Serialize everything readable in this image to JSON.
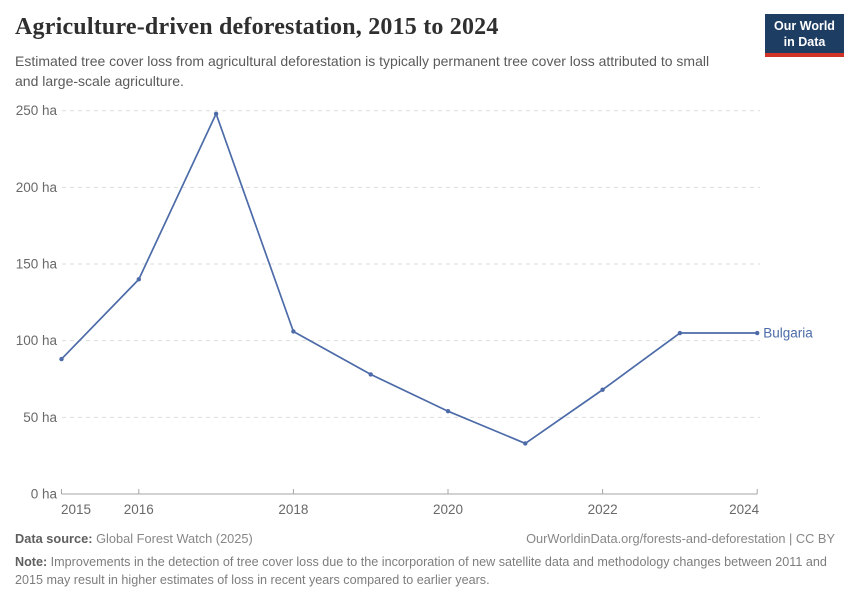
{
  "header": {
    "title": "Agriculture-driven deforestation, 2015 to 2024",
    "subtitle": "Estimated tree cover loss from agricultural deforestation is typically permanent tree cover loss attributed to small and large-scale agriculture.",
    "logo_line1": "Our World",
    "logo_line2": "in Data"
  },
  "chart_data": {
    "type": "line",
    "title": "Agriculture-driven deforestation, 2015 to 2024",
    "unit": "ha",
    "x": [
      2015,
      2016,
      2017,
      2018,
      2019,
      2020,
      2021,
      2022,
      2023,
      2024
    ],
    "series": [
      {
        "name": "Bulgaria",
        "values": [
          88,
          140,
          248,
          106,
          78,
          54,
          33,
          68,
          105,
          105
        ]
      }
    ],
    "xlim": [
      2015,
      2024
    ],
    "ylim": [
      0,
      250
    ],
    "yticks": [
      {
        "v": 0,
        "label": "0 ha"
      },
      {
        "v": 50,
        "label": "50 ha"
      },
      {
        "v": 100,
        "label": "100 ha"
      },
      {
        "v": 150,
        "label": "150 ha"
      },
      {
        "v": 200,
        "label": "200 ha"
      },
      {
        "v": 250,
        "label": "250 ha"
      }
    ],
    "xticks": [
      {
        "v": 2015,
        "label": "2015"
      },
      {
        "v": 2016,
        "label": "2016"
      },
      {
        "v": 2018,
        "label": "2018"
      },
      {
        "v": 2020,
        "label": "2020"
      },
      {
        "v": 2022,
        "label": "2022"
      },
      {
        "v": 2024,
        "label": "2024"
      }
    ],
    "grid": "horizontal-dashed",
    "legend": "end-of-line-label"
  },
  "colors": {
    "line": "#4c6ba8",
    "series_label": "#4c6ba8",
    "grid": "#dedede",
    "axis": "#a6a6a6",
    "tick_text": "#696969",
    "logo_bg": "#1d3d63",
    "logo_red": "#d13327"
  },
  "footer": {
    "datasource_label": "Data source:",
    "datasource_value": " Global Forest Watch (2025)",
    "attribution": "OurWorldinData.org/forests-and-deforestation | CC BY",
    "note_label": "Note:",
    "note_value": " Improvements in the detection of tree cover loss due to the incorporation of new satellite data and methodology changes between 2011 and 2015 may result in higher estimates of loss in recent years compared to earlier years."
  }
}
